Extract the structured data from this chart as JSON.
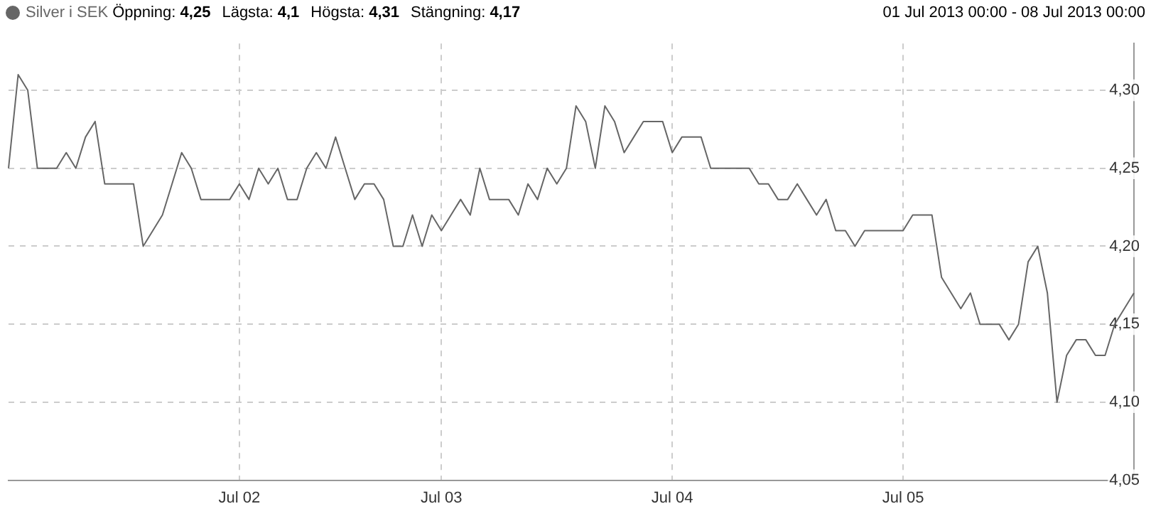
{
  "chart_data": {
    "type": "line",
    "subtitle": "01 Jul 2013 00:00 - 08 Jul 2013 00:00",
    "annotations": [
      "Öppning: 4,25",
      "Lägsta: 4,1",
      "Högsta: 4,31",
      "Stängning: 4,17"
    ],
    "categories": [
      null,
      null,
      null,
      null,
      null,
      null,
      null,
      null,
      null,
      null,
      null,
      null,
      null,
      null,
      null,
      null,
      null,
      null,
      null,
      null,
      null,
      null,
      null,
      null,
      "Jul 02",
      null,
      null,
      null,
      null,
      null,
      null,
      null,
      null,
      null,
      null,
      null,
      null,
      null,
      null,
      null,
      null,
      null,
      null,
      null,
      null,
      "Jul 03",
      null,
      null,
      null,
      null,
      null,
      null,
      null,
      null,
      null,
      null,
      null,
      null,
      null,
      null,
      null,
      null,
      null,
      null,
      null,
      null,
      null,
      null,
      null,
      "Jul 04",
      null,
      null,
      null,
      null,
      null,
      null,
      null,
      null,
      null,
      null,
      null,
      null,
      null,
      null,
      null,
      null,
      null,
      null,
      null,
      null,
      null,
      null,
      null,
      "Jul 05",
      null,
      null,
      null,
      null,
      null,
      null,
      null,
      null,
      null,
      null,
      null,
      null,
      null,
      null,
      null,
      null,
      null,
      null,
      null,
      null,
      null,
      null,
      null,
      null
    ],
    "series": [
      {
        "name": "Silver i SEK",
        "color": "#666666",
        "values": [
          4.25,
          4.31,
          4.3,
          4.25,
          4.25,
          4.25,
          4.26,
          4.25,
          4.27,
          4.28,
          4.24,
          4.24,
          4.24,
          4.24,
          4.2,
          4.21,
          4.22,
          4.24,
          4.26,
          4.25,
          4.23,
          4.23,
          4.23,
          4.23,
          4.24,
          4.23,
          4.25,
          4.24,
          4.25,
          4.23,
          4.23,
          4.25,
          4.26,
          4.25,
          4.27,
          4.25,
          4.23,
          4.24,
          4.24,
          4.23,
          4.2,
          4.2,
          4.22,
          4.2,
          4.22,
          4.21,
          4.22,
          4.23,
          4.22,
          4.25,
          4.23,
          4.23,
          4.23,
          4.22,
          4.24,
          4.23,
          4.25,
          4.24,
          4.25,
          4.29,
          4.28,
          4.25,
          4.29,
          4.28,
          4.26,
          4.27,
          4.28,
          4.28,
          4.28,
          4.26,
          4.27,
          4.27,
          4.27,
          4.25,
          4.25,
          4.25,
          4.25,
          4.25,
          4.24,
          4.24,
          4.23,
          4.23,
          4.24,
          4.23,
          4.22,
          4.23,
          4.21,
          4.21,
          4.2,
          4.21,
          4.21,
          4.21,
          4.21,
          4.21,
          4.22,
          4.22,
          4.22,
          4.18,
          4.17,
          4.16,
          4.17,
          4.15,
          4.15,
          4.15,
          4.14,
          4.15,
          4.19,
          4.2,
          4.17,
          4.1,
          4.13,
          4.14,
          4.14,
          4.13,
          4.13,
          4.15,
          4.16,
          4.17
        ]
      }
    ],
    "ylim": [
      4.05,
      4.33
    ],
    "yticks": [
      {
        "value": 4.05,
        "label": "4,05"
      },
      {
        "value": 4.1,
        "label": "4,10"
      },
      {
        "value": 4.15,
        "label": "4,15"
      },
      {
        "value": 4.2,
        "label": "4,20"
      },
      {
        "value": 4.25,
        "label": "4,25"
      },
      {
        "value": 4.3,
        "label": "4,30"
      }
    ],
    "grid": true,
    "legend": "top left",
    "marker": "none",
    "line_style": "solid"
  }
}
